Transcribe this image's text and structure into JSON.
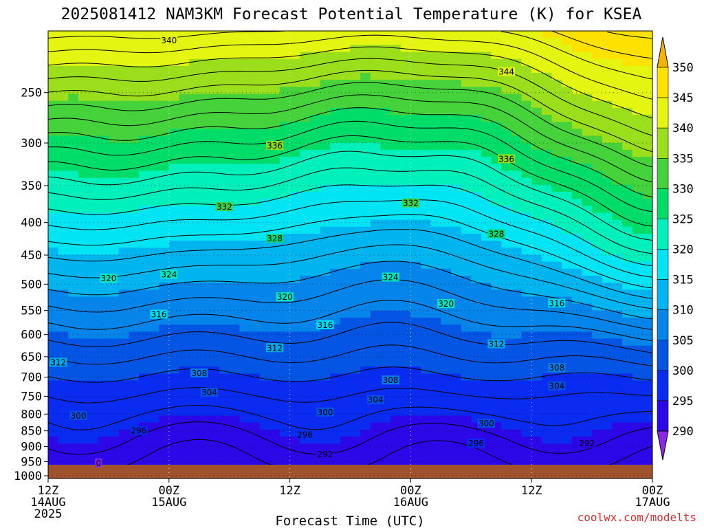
{
  "chart_data": {
    "type": "heatmap",
    "title": "2025081412 NAM3KM Forecast Potential Temperature (K) for KSEA",
    "xlabel": "Forecast Time (UTC)",
    "ylabel": "",
    "x_ticks": [
      {
        "hour": 0,
        "line1": "12Z",
        "line2": "14AUG",
        "line3": "2025"
      },
      {
        "hour": 12,
        "line1": "00Z",
        "line2": "15AUG",
        "line3": ""
      },
      {
        "hour": 24,
        "line1": "12Z",
        "line2": "",
        "line3": ""
      },
      {
        "hour": 36,
        "line1": "00Z",
        "line2": "16AUG",
        "line3": ""
      },
      {
        "hour": 48,
        "line1": "12Z",
        "line2": "",
        "line3": ""
      },
      {
        "hour": 60,
        "line1": "00Z",
        "line2": "17AUG",
        "line3": ""
      }
    ],
    "xlim_hours": [
      0,
      60
    ],
    "y_ticks": [
      250,
      300,
      350,
      400,
      450,
      500,
      550,
      600,
      650,
      700,
      750,
      800,
      850,
      900,
      950,
      1000
    ],
    "ylim_hPa": [
      1010,
      200
    ],
    "y_scale": "log-pressure",
    "grid": "dotted",
    "colorbar": {
      "levels": [
        290,
        295,
        300,
        305,
        310,
        315,
        320,
        325,
        330,
        335,
        340,
        345,
        350
      ],
      "colors": [
        "#8a28e8",
        "#2c08e8",
        "#0a2cf0",
        "#0555e5",
        "#0584ea",
        "#00b4f0",
        "#00e4f4",
        "#00f0bc",
        "#00dc68",
        "#45d23a",
        "#9bde1c",
        "#e4f512",
        "#fde200",
        "#f6b400"
      ],
      "placement": "right"
    },
    "contour_values": [
      288,
      290,
      292,
      294,
      296,
      298,
      300,
      302,
      304,
      306,
      308,
      310,
      312,
      314,
      316,
      318,
      320,
      322,
      324,
      326,
      328,
      330,
      332,
      334,
      336,
      338,
      340,
      342,
      344,
      346,
      348
    ],
    "contour_labels": [
      {
        "value": 340,
        "hour": 12.0,
        "hPa": 207
      },
      {
        "value": 344,
        "hour": 45.5,
        "hPa": 232
      },
      {
        "value": 336,
        "hour": 22.5,
        "hPa": 303
      },
      {
        "value": 336,
        "hour": 45.5,
        "hPa": 318
      },
      {
        "value": 332,
        "hour": 17.5,
        "hPa": 378
      },
      {
        "value": 332,
        "hour": 36.0,
        "hPa": 373
      },
      {
        "value": 328,
        "hour": 22.5,
        "hPa": 424
      },
      {
        "value": 328,
        "hour": 44.5,
        "hPa": 417
      },
      {
        "value": 324,
        "hour": 12.0,
        "hPa": 483
      },
      {
        "value": 324,
        "hour": 34.0,
        "hPa": 488
      },
      {
        "value": 320,
        "hour": 6.0,
        "hPa": 490
      },
      {
        "value": 320,
        "hour": 23.5,
        "hPa": 524
      },
      {
        "value": 320,
        "hour": 39.5,
        "hPa": 537
      },
      {
        "value": 316,
        "hour": 11.0,
        "hPa": 558
      },
      {
        "value": 316,
        "hour": 27.5,
        "hPa": 580
      },
      {
        "value": 316,
        "hour": 50.5,
        "hPa": 536
      },
      {
        "value": 312,
        "hour": 1.0,
        "hPa": 664
      },
      {
        "value": 312,
        "hour": 22.5,
        "hPa": 630
      },
      {
        "value": 312,
        "hour": 44.5,
        "hPa": 621
      },
      {
        "value": 308,
        "hour": 15.0,
        "hPa": 690
      },
      {
        "value": 308,
        "hour": 34.0,
        "hPa": 708
      },
      {
        "value": 308,
        "hour": 50.5,
        "hPa": 677
      },
      {
        "value": 304,
        "hour": 16.0,
        "hPa": 740
      },
      {
        "value": 304,
        "hour": 32.5,
        "hPa": 760
      },
      {
        "value": 304,
        "hour": 50.5,
        "hPa": 723
      },
      {
        "value": 300,
        "hour": 3.0,
        "hPa": 805
      },
      {
        "value": 300,
        "hour": 27.5,
        "hPa": 795
      },
      {
        "value": 300,
        "hour": 43.5,
        "hPa": 828
      },
      {
        "value": 296,
        "hour": 9.0,
        "hPa": 850
      },
      {
        "value": 296,
        "hour": 25.5,
        "hPa": 862
      },
      {
        "value": 296,
        "hour": 42.5,
        "hPa": 890
      },
      {
        "value": 292,
        "hour": 27.5,
        "hPa": 926
      },
      {
        "value": 292,
        "hour": 53.5,
        "hPa": 890
      },
      {
        "value": 0,
        "hour": 5.0,
        "hPa": 956
      }
    ]
  },
  "credit": "coolwx.com/modelts"
}
